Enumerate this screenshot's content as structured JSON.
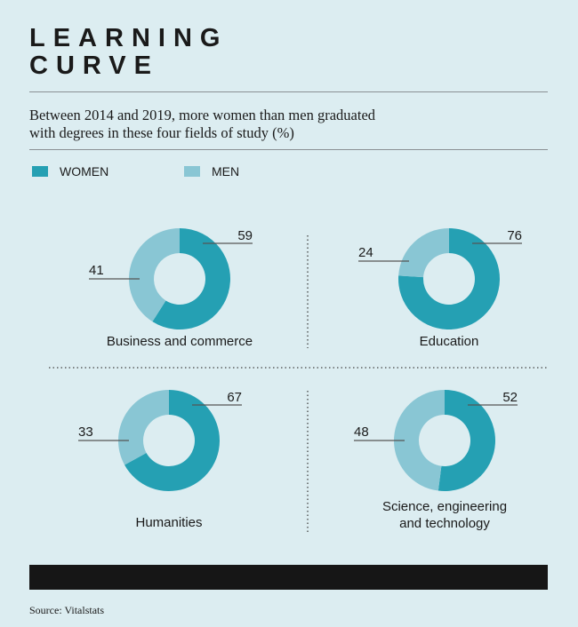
{
  "chart_data": {
    "type": "pie",
    "title": "LEARNING CURVE",
    "subtitle": "Between 2014 and 2019, more women than men graduated with degrees in these four fields of study (%)",
    "legend": [
      {
        "name": "WOMEN",
        "color": "#25a0b3"
      },
      {
        "name": "MEN",
        "color": "#89c6d4"
      }
    ],
    "charts": [
      {
        "category": "Business and commerce",
        "women": 59,
        "men": 41
      },
      {
        "category": "Education",
        "women": 76,
        "men": 24
      },
      {
        "category": "Humanities",
        "women": 67,
        "men": 33
      },
      {
        "category": "Science, engineering and technology",
        "women": 52,
        "men": 48
      }
    ]
  },
  "title_line1": "LEARNING",
  "title_line2": "CURVE",
  "subtitle_line1": "Between 2014 and 2019, more women than men graduated",
  "subtitle_line2": "with degrees in these four fields of study (%)",
  "source": "Source: Vitalstats"
}
